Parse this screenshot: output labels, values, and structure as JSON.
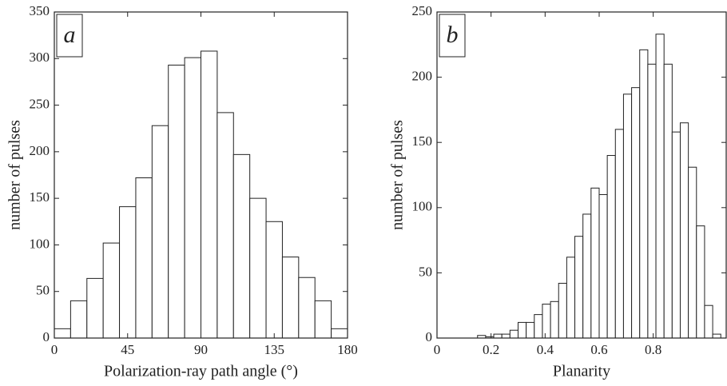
{
  "chart_data": [
    {
      "type": "histogram",
      "panel_label": "a",
      "xlabel": "Polarization-ray path angle (°)",
      "ylabel": "number of pulses",
      "bins": [
        0,
        10,
        20,
        30,
        40,
        50,
        60,
        70,
        80,
        90,
        100,
        110,
        120,
        130,
        140,
        150,
        160,
        170,
        180
      ],
      "values": [
        10,
        40,
        64,
        102,
        141,
        172,
        228,
        293,
        301,
        308,
        242,
        197,
        150,
        125,
        87,
        65,
        40,
        10
      ],
      "xlim": [
        0,
        180
      ],
      "ylim": [
        0,
        350
      ],
      "xticks": [
        0,
        45,
        90,
        135,
        180
      ],
      "yticks": [
        0,
        50,
        100,
        150,
        200,
        250,
        300,
        350
      ],
      "color": "#ffffff"
    },
    {
      "type": "histogram",
      "panel_label": "b",
      "xlabel": "Planarity",
      "ylabel": "number of pulses",
      "bins": [
        0.15,
        0.18,
        0.21,
        0.24,
        0.27,
        0.3,
        0.33,
        0.36,
        0.39,
        0.42,
        0.45,
        0.48,
        0.51,
        0.54,
        0.57,
        0.6,
        0.63,
        0.66,
        0.69,
        0.72,
        0.75,
        0.78,
        0.81,
        0.84,
        0.87,
        0.9,
        0.93,
        0.96,
        0.99,
        1.02,
        1.05
      ],
      "values": [
        2,
        1,
        3,
        3,
        6,
        12,
        12,
        18,
        26,
        28,
        42,
        62,
        78,
        95,
        115,
        110,
        140,
        160,
        187,
        192,
        221,
        210,
        233,
        210,
        158,
        165,
        131,
        86,
        25,
        3
      ],
      "xlim": [
        0,
        1.07
      ],
      "ylim": [
        0,
        250
      ],
      "xticks": [
        0,
        0.2,
        0.4,
        0.6,
        0.8
      ],
      "yticks": [
        0,
        50,
        100,
        150,
        200,
        250
      ],
      "color": "#ffffff"
    }
  ]
}
